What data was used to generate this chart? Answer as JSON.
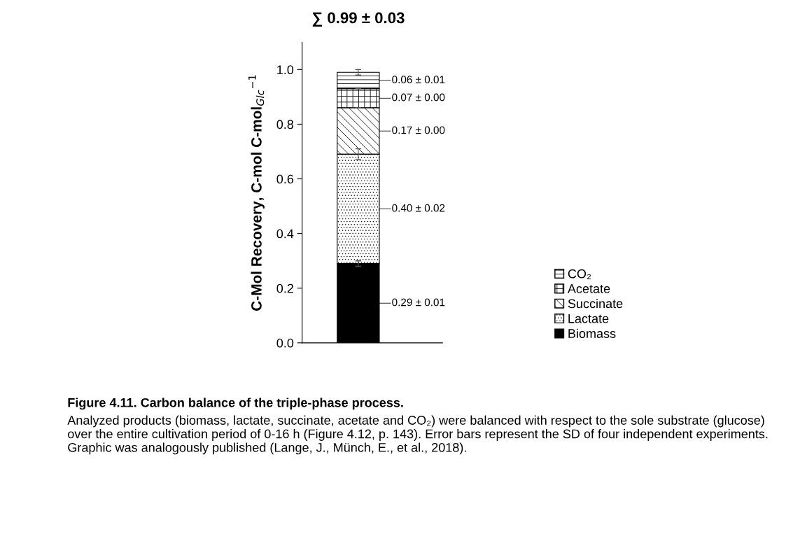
{
  "chart_data": {
    "type": "bar",
    "stacked": true,
    "categories": [
      null
    ],
    "ylabel": "C-Mol Recovery, C-mol C-mol$_{Glc}$$^{−1}$",
    "ylim": [
      0,
      1.1
    ],
    "yticks": [
      {
        "value": 0,
        "label": "0.0"
      },
      {
        "value": 0.2,
        "label": "0.2"
      },
      {
        "value": 0.4,
        "label": "0.4"
      },
      {
        "value": 0.6,
        "label": "0.6"
      },
      {
        "value": 0.8,
        "label": "0.8"
      },
      {
        "value": 1.0,
        "label": "1.0"
      }
    ],
    "series": [
      {
        "name": "Biomass",
        "color": "#000000",
        "values": [
          0.29
        ],
        "errors": [
          0.01
        ],
        "value_labels": [
          "0.29 ± 0.01"
        ]
      },
      {
        "name": "Lactate",
        "color": "#ffffff",
        "values": [
          0.4
        ],
        "errors": [
          0.02
        ],
        "value_labels": [
          "0.40 ± 0.02"
        ]
      },
      {
        "name": "Succinate",
        "color": "#ffffff",
        "values": [
          0.17
        ],
        "errors": [
          0.0
        ],
        "value_labels": [
          "0.17 ± 0.00"
        ]
      },
      {
        "name": "Acetate",
        "color": "#ffffff",
        "values": [
          0.07
        ],
        "errors": [
          0.0
        ],
        "value_labels": [
          "0.07 ± 0.00"
        ]
      },
      {
        "name": "CO₂",
        "color": "#ffffff",
        "values": [
          0.06
        ],
        "errors": [
          0.01
        ],
        "value_labels": [
          "0.06 ± 0.01"
        ]
      }
    ],
    "totals": [
      "∑ 0.99 ± 0.03"
    ],
    "legend": "right",
    "grid": false,
    "annotations": [
      "Figure 4.11. Carbon balance of the triple-phase process.",
      "Analyzed products (biomass, lactate, succinate, acetate and CO₂) were balanced with respect to the sole substrate (glucose) over the entire cultivation period of 0-16 h (Figure 4.12, p. 143). Error bars represent the SD of four independent experiments. Graphic was analogously published (Lange, J., Münch, E., et al., 2018)."
    ]
  }
}
